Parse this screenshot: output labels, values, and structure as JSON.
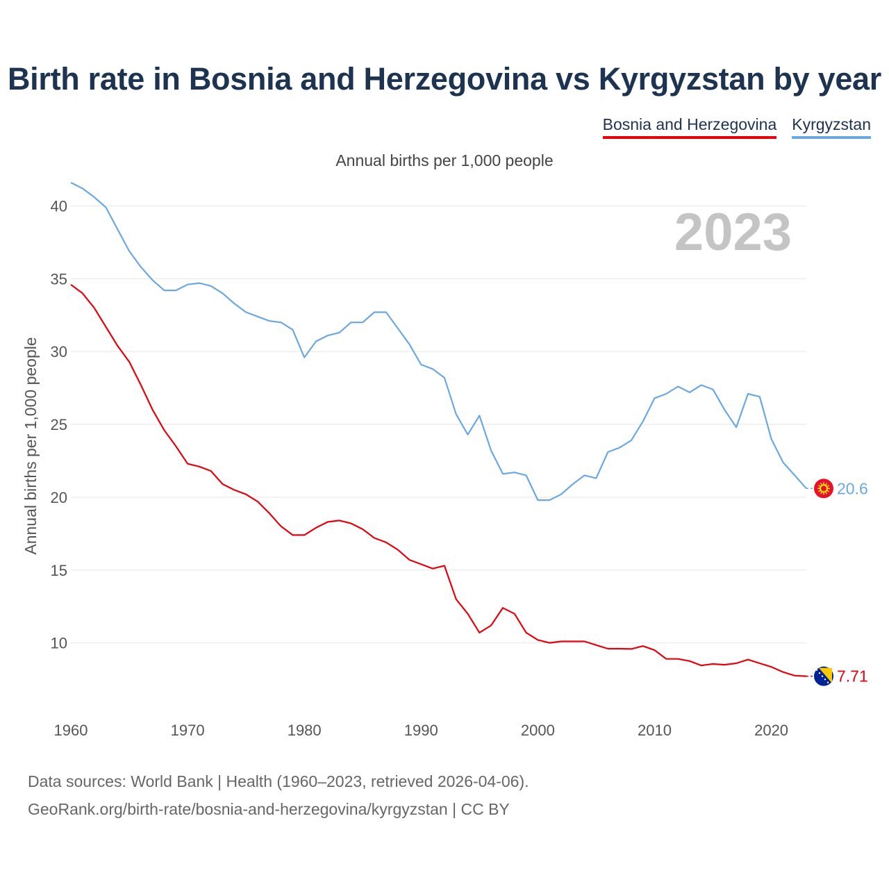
{
  "chart_data": {
    "type": "line",
    "title": "Birth rate in Bosnia and Herzegovina vs Kyrgyzstan by year",
    "subtitle": "Annual births per 1,000 people",
    "ylabel": "Annual births per 1,000 people",
    "xlabel": "",
    "year_label": "2023",
    "xlim": [
      1960,
      2023
    ],
    "ylim": [
      5.5,
      42.5
    ],
    "yticks": [
      10,
      15,
      20,
      25,
      30,
      35,
      40
    ],
    "xticks": [
      1960,
      1970,
      1980,
      1990,
      2000,
      2010,
      2020
    ],
    "x": [
      1960,
      1961,
      1962,
      1963,
      1964,
      1965,
      1966,
      1967,
      1968,
      1969,
      1970,
      1971,
      1972,
      1973,
      1974,
      1975,
      1976,
      1977,
      1978,
      1979,
      1980,
      1981,
      1982,
      1983,
      1984,
      1985,
      1986,
      1987,
      1988,
      1989,
      1990,
      1991,
      1992,
      1993,
      1994,
      1995,
      1996,
      1997,
      1998,
      1999,
      2000,
      2001,
      2002,
      2003,
      2004,
      2005,
      2006,
      2007,
      2008,
      2009,
      2010,
      2011,
      2012,
      2013,
      2014,
      2015,
      2016,
      2017,
      2018,
      2019,
      2020,
      2021,
      2022,
      2023
    ],
    "series": [
      {
        "name": "Kyrgyzstan",
        "color": "#6aa8e4",
        "end_label": "20.6",
        "values": [
          41.6,
          41.2,
          40.6,
          39.9,
          38.4,
          36.9,
          35.8,
          34.9,
          34.2,
          34.2,
          34.6,
          34.7,
          34.5,
          34.0,
          33.3,
          32.7,
          32.4,
          32.1,
          32.0,
          31.5,
          29.6,
          30.7,
          31.1,
          31.3,
          32.0,
          32.0,
          32.7,
          32.7,
          31.6,
          30.5,
          29.1,
          28.8,
          28.2,
          25.7,
          24.3,
          25.6,
          23.2,
          21.6,
          21.7,
          21.5,
          19.8,
          19.8,
          20.2,
          20.9,
          21.5,
          21.3,
          23.1,
          23.4,
          23.9,
          25.2,
          26.8,
          27.1,
          27.6,
          27.2,
          27.7,
          27.4,
          26.0,
          24.8,
          27.1,
          26.9,
          24.0,
          22.4,
          21.5,
          20.6
        ]
      },
      {
        "name": "Bosnia and Herzegovina",
        "color": "#e8000b",
        "end_label": "7.71",
        "values": [
          34.6,
          34.0,
          33.0,
          31.7,
          30.4,
          29.3,
          27.7,
          26.0,
          24.6,
          23.5,
          22.3,
          22.1,
          21.8,
          20.9,
          20.5,
          20.2,
          19.7,
          18.9,
          18.0,
          17.4,
          17.4,
          17.9,
          18.3,
          18.4,
          18.2,
          17.8,
          17.2,
          16.9,
          16.4,
          15.7,
          15.4,
          15.1,
          15.3,
          13.0,
          12.0,
          10.7,
          11.2,
          12.4,
          12.0,
          10.7,
          10.2,
          10.0,
          10.1,
          10.1,
          10.1,
          9.85,
          9.6,
          9.6,
          9.58,
          9.78,
          9.5,
          8.9,
          8.9,
          8.75,
          8.45,
          8.55,
          8.5,
          8.6,
          8.85,
          8.6,
          8.35,
          8.0,
          7.75,
          7.71
        ]
      }
    ],
    "legend": [
      "Bosnia and Herzegovina",
      "Kyrgyzstan"
    ],
    "legend_position": "top-right",
    "grid": true
  },
  "footer": {
    "sources": "Data sources: World Bank | Health (1960–2023, retrieved 2026-04-06).",
    "link": "GeoRank.org/birth-rate/bosnia-and-herzegovina/kyrgyzstan | CC BY"
  },
  "icons": [
    "bosnia-flag-icon",
    "kyrgyzstan-flag-icon"
  ]
}
